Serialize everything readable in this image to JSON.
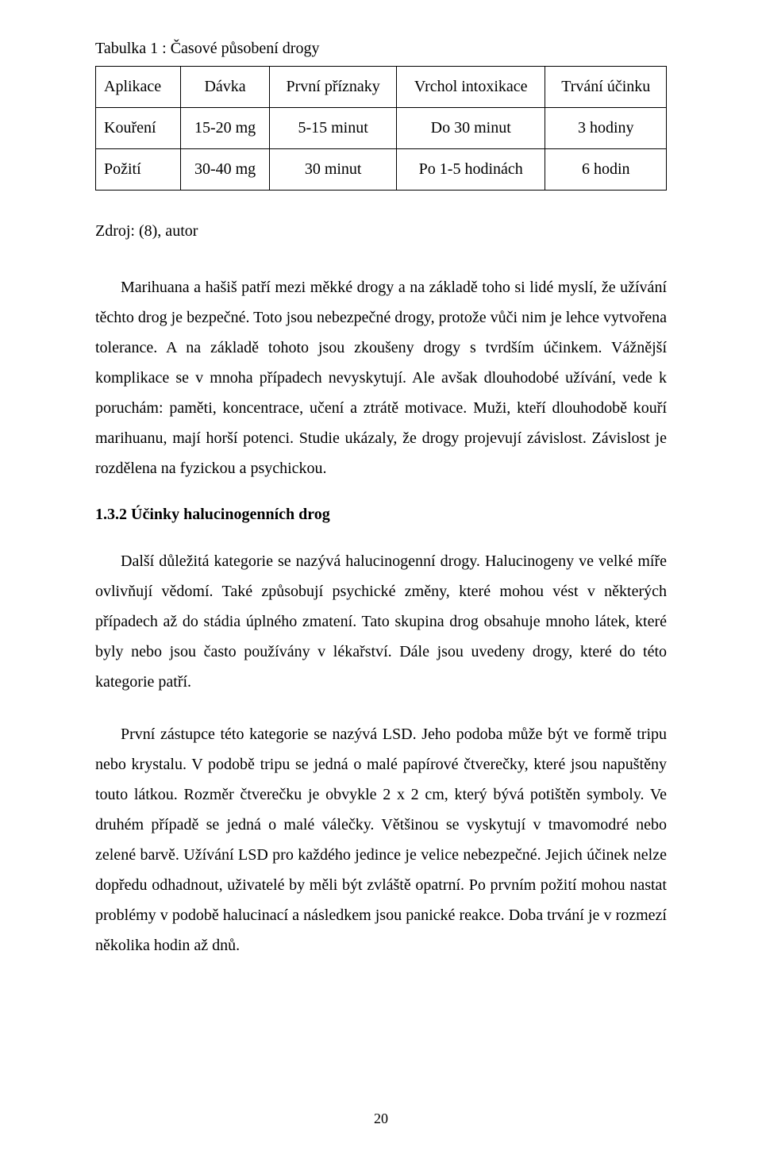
{
  "table_title": "Tabulka 1 : Časové působení drogy",
  "table": {
    "columns": [
      "Aplikace",
      "Dávka",
      "První příznaky",
      "Vrchol intoxikace",
      "Trvání účinku"
    ],
    "rows": [
      [
        "Kouření",
        "15-20 mg",
        "5-15 minut",
        "Do 30 minut",
        "3 hodiny"
      ],
      [
        "Požití",
        "30-40 mg",
        "30 minut",
        "Po 1-5 hodinách",
        "6 hodin"
      ]
    ]
  },
  "source": "Zdroj: (8), autor",
  "para1": "Marihuana a hašiš patří mezi měkké drogy a na základě toho si lidé myslí, že užívání těchto drog je bezpečné. Toto jsou nebezpečné drogy, protože vůči nim je lehce vytvořena tolerance. A na základě tohoto jsou zkoušeny drogy s tvrdším účinkem. Vážnější komplikace se v mnoha případech nevyskytují. Ale avšak dlouhodobé užívání, vede k poruchám: paměti, koncentrace, učení a ztrátě motivace. Muži, kteří dlouhodobě kouří marihuanu, mají horší potenci. Studie ukázaly, že drogy projevují závislost. Závislost je rozdělena na fyzickou a psychickou.",
  "section_heading": "1.3.2 Účinky halucinogenních drog",
  "para2": "Další důležitá kategorie se nazývá halucinogenní drogy. Halucinogeny ve velké míře ovlivňují vědomí. Také způsobují psychické změny, které mohou vést v některých případech až do stádia úplného zmatení. Tato skupina drog obsahuje mnoho látek, které byly nebo jsou často používány v lékařství. Dále jsou uvedeny drogy, které do této kategorie patří.",
  "para3": "První zástupce této kategorie se nazývá LSD. Jeho podoba může být ve formě tripu nebo krystalu. V podobě tripu se jedná o malé papírové čtverečky, které jsou napuštěny touto látkou. Rozměr čtverečku je obvykle 2 x 2 cm, který bývá potištěn symboly. Ve druhém případě se jedná o malé válečky. Většinou se vyskytují v tmavomodré nebo zelené barvě. Užívání LSD pro každého jedince je velice nebezpečné. Jejich účinek nelze dopředu odhadnout, uživatelé by měli být zvláště opatrní. Po prvním požití mohou nastat problémy v podobě halucinací a následkem jsou panické reakce. Doba trvání je v rozmezí několika hodin až dnů.",
  "page_number": "20"
}
